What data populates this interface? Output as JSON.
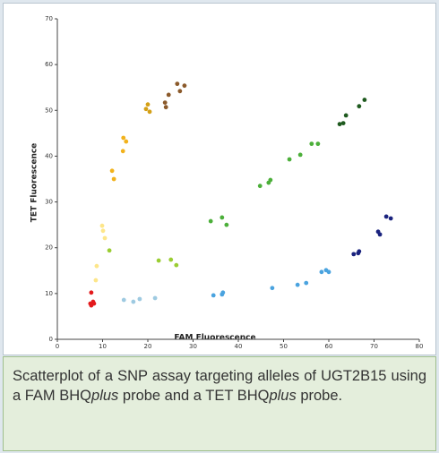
{
  "chart_data": {
    "type": "scatter",
    "xlabel": "FAM Fluorescence",
    "ylabel": "TET Fluorescence",
    "xlim": [
      0,
      80
    ],
    "ylim": [
      0,
      70
    ],
    "xticks": [
      0,
      10,
      20,
      30,
      40,
      50,
      60,
      70,
      80
    ],
    "yticks": [
      0,
      10,
      20,
      30,
      40,
      50,
      60,
      70
    ],
    "series": [
      {
        "color": "#e31a1c",
        "x": [
          7.5,
          7.3,
          7.9,
          8.1,
          7.5
        ],
        "y": [
          10.2,
          7.8,
          8.2,
          7.8,
          7.4
        ]
      },
      {
        "color": "#fde68a",
        "x": [
          8.5,
          8.7,
          9.9,
          10.1,
          10.5
        ],
        "y": [
          12.9,
          16.0,
          24.8,
          23.7,
          22.1
        ]
      },
      {
        "color": "#f2b21c",
        "x": [
          12.1,
          12.5,
          14.5,
          14.6,
          15.2
        ],
        "y": [
          36.8,
          35.0,
          41.1,
          44.0,
          43.2
        ]
      },
      {
        "color": "#d4a017",
        "x": [
          19.6,
          20.0,
          20.4
        ],
        "y": [
          50.3,
          51.3,
          49.7
        ]
      },
      {
        "color": "#8b5a2b",
        "x": [
          23.8,
          24.0,
          24.6,
          26.5,
          27.1,
          28.1
        ],
        "y": [
          51.7,
          50.7,
          53.4,
          55.8,
          54.2,
          55.4
        ]
      },
      {
        "color": "#9ecae1",
        "x": [
          14.7,
          16.8,
          18.2,
          21.6
        ],
        "y": [
          8.6,
          8.2,
          8.8,
          9.0
        ]
      },
      {
        "color": "#9acd32",
        "x": [
          11.5,
          22.4,
          25.1,
          26.3
        ],
        "y": [
          19.4,
          17.2,
          17.4,
          16.2
        ]
      },
      {
        "color": "#4caf3a",
        "x": [
          33.9,
          36.4,
          37.4,
          44.8,
          46.7,
          47.1,
          51.3,
          53.7,
          56.2,
          57.6
        ],
        "y": [
          25.8,
          26.6,
          25.0,
          33.5,
          34.2,
          34.8,
          39.3,
          40.3,
          42.7,
          42.7
        ]
      },
      {
        "color": "#1f5a1f",
        "x": [
          62.4,
          63.2,
          63.8,
          66.7,
          67.9
        ],
        "y": [
          47.0,
          47.2,
          48.9,
          50.9,
          52.3
        ]
      },
      {
        "color": "#4aa3df",
        "x": [
          34.5,
          36.4,
          36.6,
          47.5,
          53.1,
          55.0,
          58.4,
          59.4,
          60.0
        ],
        "y": [
          9.6,
          9.8,
          10.2,
          11.2,
          11.9,
          12.3,
          14.7,
          15.1,
          14.7
        ]
      },
      {
        "color": "#1a237e",
        "x": [
          65.5,
          66.5,
          66.7,
          70.9,
          71.3,
          72.7,
          73.7
        ],
        "y": [
          18.6,
          18.8,
          19.2,
          23.5,
          22.9,
          26.8,
          26.4
        ]
      }
    ]
  },
  "caption": [
    "Scatterplot of a SNP assay targeting alleles of UGT2B15 using a FAM BHQ",
    "plus",
    " probe and a TET BHQ",
    "plus",
    " probe."
  ]
}
